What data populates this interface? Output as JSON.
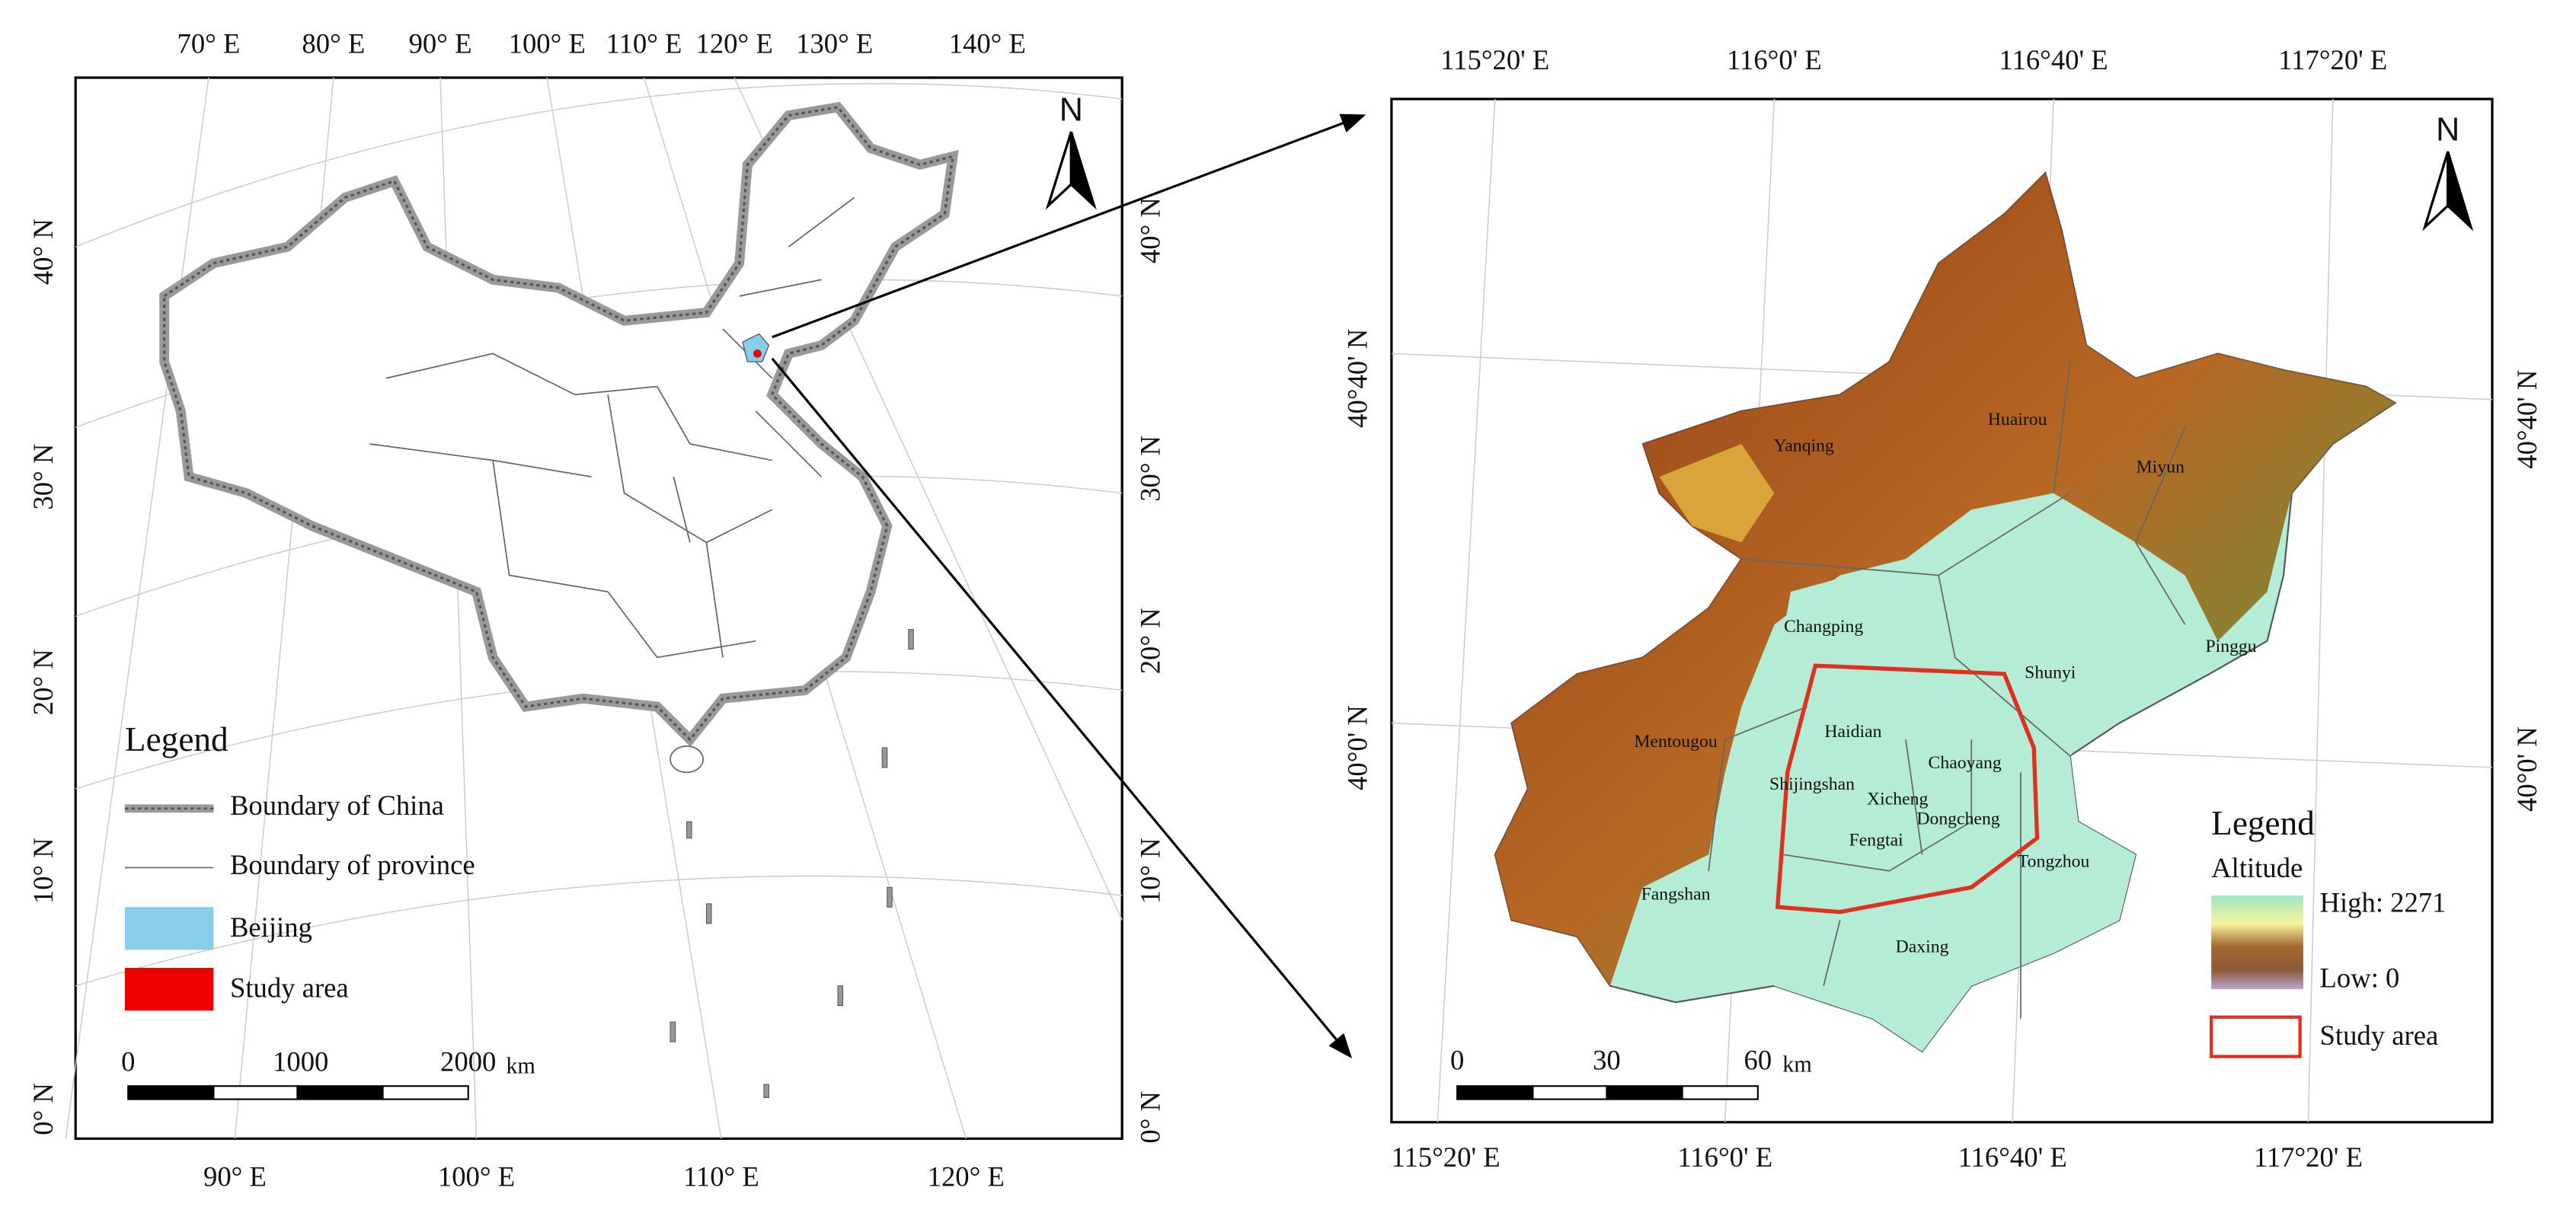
{
  "left_map": {
    "top_labels": [
      "70° E",
      "80° E",
      "90° E",
      "100° E",
      "110° E",
      "120° E",
      "130° E",
      "140° E"
    ],
    "bottom_labels": [
      "90° E",
      "100° E",
      "110° E",
      "120° E"
    ],
    "left_labels": [
      "40° N",
      "30° N",
      "20° N",
      "10° N",
      "0° N"
    ],
    "right_labels": [
      "40° N",
      "30° N",
      "20° N",
      "10° N",
      "0° N"
    ],
    "north": "N",
    "legend": {
      "title": "Legend",
      "items": [
        "Boundary of China",
        "Boundary of province",
        "Beijing",
        "Study area"
      ]
    },
    "scale": {
      "labels": [
        "0",
        "1000",
        "2000"
      ],
      "unit": "km"
    }
  },
  "right_map": {
    "top_labels": [
      "115°20' E",
      "116°0' E",
      "116°40' E",
      "117°20' E"
    ],
    "bottom_labels": [
      "115°20' E",
      "116°0' E",
      "116°40' E",
      "117°20' E"
    ],
    "left_labels": [
      "40°40' N",
      "40°0' N"
    ],
    "right_labels": [
      "40°40' N",
      "40°0' N"
    ],
    "north": "N",
    "districts": [
      "Yanqing",
      "Huairou",
      "Miyun",
      "Changping",
      "Shunyi",
      "Pinggu",
      "Haidian",
      "Chaoyang",
      "Shijingshan",
      "Xicheng",
      "Dongcheng",
      "Mentougou",
      "Fengtai",
      "Tongzhou",
      "Fangshan",
      "Daxing"
    ],
    "legend": {
      "title": "Legend",
      "subtitle": "Altitude",
      "high": "High: 2271",
      "low": "Low: 0",
      "study_area": "Study area"
    },
    "scale": {
      "labels": [
        "0",
        "30",
        "60"
      ],
      "unit": "km"
    }
  }
}
